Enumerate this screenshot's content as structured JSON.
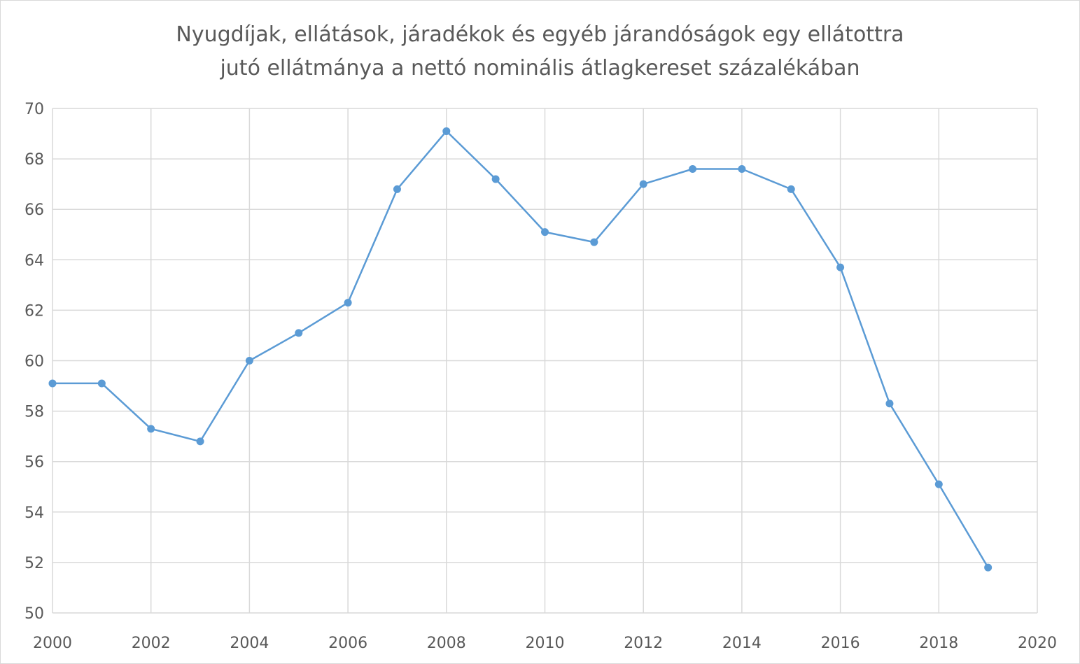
{
  "chart_data": {
    "type": "scatter",
    "mode": "lines+markers",
    "title_lines": [
      "Nyugdíjak, ellátások, járadékok és egyéb járandóságok egy ellátottra",
      "jutó ellátmánya a nettó nominális átlagkereset százalékában"
    ],
    "xlabel": "",
    "ylabel": "",
    "xlim": [
      2000,
      2020
    ],
    "ylim": [
      50,
      70
    ],
    "x_ticks": [
      "2000",
      "2002",
      "2004",
      "2006",
      "2008",
      "2010",
      "2012",
      "2014",
      "2016",
      "2018",
      "2020"
    ],
    "y_ticks": [
      "50",
      "52",
      "54",
      "56",
      "58",
      "60",
      "62",
      "64",
      "66",
      "68",
      "70"
    ],
    "grid": true,
    "legend": "none",
    "series": [
      {
        "color": "#5b9bd5",
        "x": [
          2000,
          2001,
          2002,
          2003,
          2004,
          2005,
          2006,
          2007,
          2008,
          2009,
          2010,
          2011,
          2012,
          2013,
          2014,
          2015,
          2016,
          2017,
          2018,
          2019
        ],
        "y": [
          59.1,
          59.1,
          57.3,
          56.8,
          60.0,
          61.1,
          62.3,
          66.8,
          69.1,
          67.2,
          65.1,
          64.7,
          67.0,
          67.6,
          67.6,
          66.8,
          63.7,
          58.3,
          55.1,
          51.8
        ]
      }
    ],
    "gridline_color": "#d9d9d9",
    "text_color": "#595959"
  }
}
